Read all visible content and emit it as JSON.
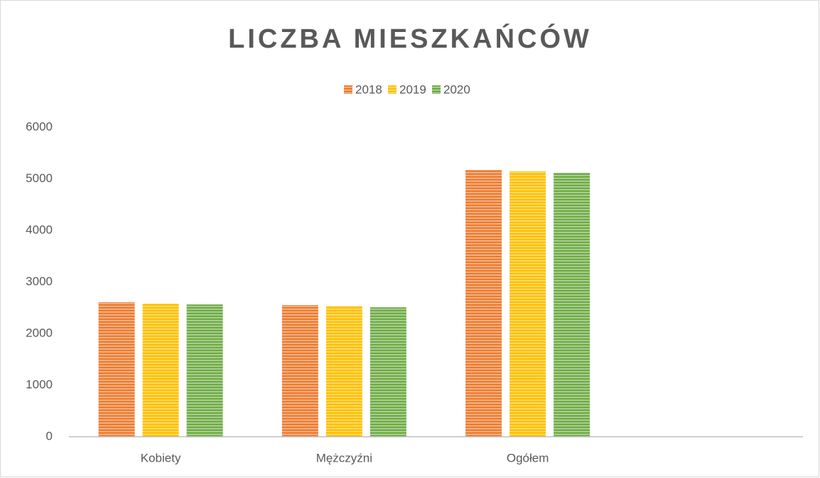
{
  "chart_data": {
    "type": "bar",
    "title": "LICZBA MIESZKAŃCÓW",
    "categories": [
      "Kobiety",
      "Mężczyźni",
      "Ogółem",
      null
    ],
    "series": [
      {
        "name": "2018",
        "color": "#ed7d31",
        "values": [
          2607,
          2552,
          5172,
          null
        ]
      },
      {
        "name": "2019",
        "color": "#ffc000",
        "values": [
          2579,
          2538,
          5145,
          null
        ]
      },
      {
        "name": "2020",
        "color": "#70ad47",
        "values": [
          2566,
          2510,
          5117,
          null
        ]
      }
    ],
    "ylim": [
      0,
      6000
    ],
    "yticks": [
      0,
      1000,
      2000,
      3000,
      4000,
      5000,
      6000
    ],
    "grid": false,
    "legend": "top"
  }
}
